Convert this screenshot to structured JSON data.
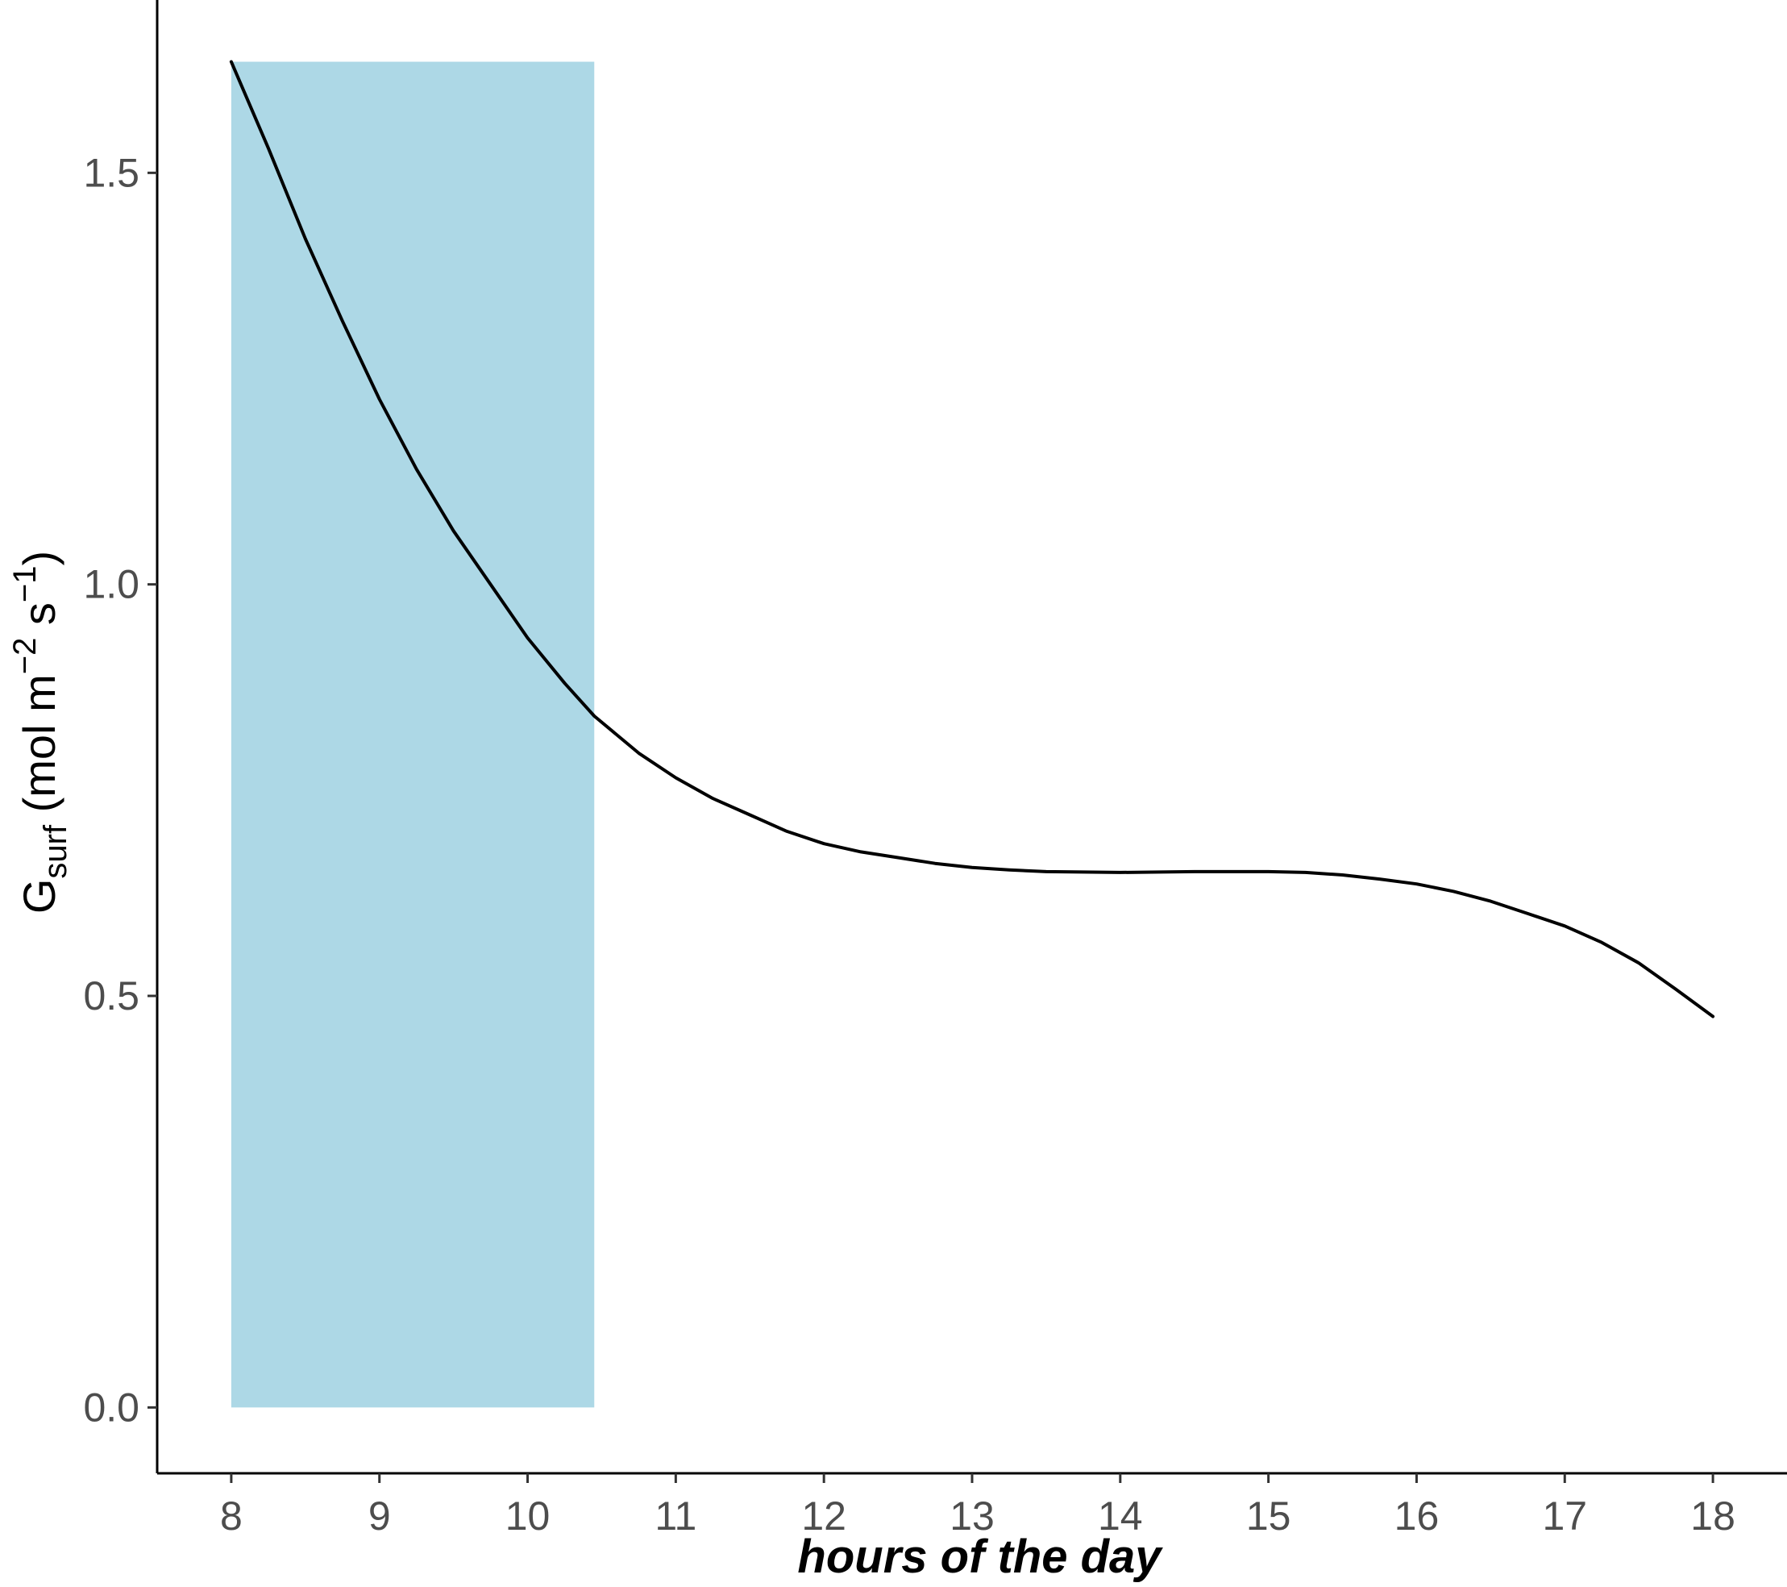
{
  "chart_data": {
    "type": "line",
    "xlabel": "hours of the day",
    "ylabel": {
      "main": "G",
      "sub": "surf",
      "unit_open": " (mol m",
      "exp1": "−2",
      "unit_mid": " s",
      "exp2": "−1",
      "unit_close": ")"
    },
    "xlim": [
      7.5,
      18.5
    ],
    "ylim": [
      -0.08,
      1.71
    ],
    "x_ticks": [
      8,
      9,
      10,
      11,
      12,
      13,
      14,
      15,
      16,
      17,
      18
    ],
    "y_ticks": [
      0.0,
      0.5,
      1.0,
      1.5
    ],
    "y_tick_labels": [
      "0.0",
      "0.5",
      "1.0",
      "1.5"
    ],
    "grid": false,
    "shaded_region": {
      "x_start": 8,
      "x_end": 10.45,
      "y_bottom": 0,
      "color": "#add8e6"
    },
    "line_color": "#000000",
    "series": [
      {
        "x": [
          8.0,
          8.25,
          8.5,
          8.75,
          9.0,
          9.25,
          9.5,
          9.75,
          10.0,
          10.25,
          10.45,
          10.75,
          11.0,
          11.25,
          11.5,
          11.75,
          12.0,
          12.25,
          12.5,
          12.75,
          13.0,
          13.25,
          13.5,
          14.0,
          14.5,
          15.0,
          15.25,
          15.5,
          15.75,
          16.0,
          16.25,
          16.5,
          16.75,
          17.0,
          17.25,
          17.5,
          17.75,
          18.0
        ],
        "y": [
          1.635,
          1.53,
          1.42,
          1.32,
          1.225,
          1.14,
          1.065,
          1.0,
          0.935,
          0.88,
          0.84,
          0.795,
          0.765,
          0.74,
          0.72,
          0.7,
          0.685,
          0.675,
          0.668,
          0.661,
          0.656,
          0.653,
          0.651,
          0.65,
          0.651,
          0.651,
          0.65,
          0.647,
          0.642,
          0.636,
          0.627,
          0.615,
          0.6,
          0.585,
          0.565,
          0.54,
          0.508,
          0.475
        ]
      }
    ]
  }
}
